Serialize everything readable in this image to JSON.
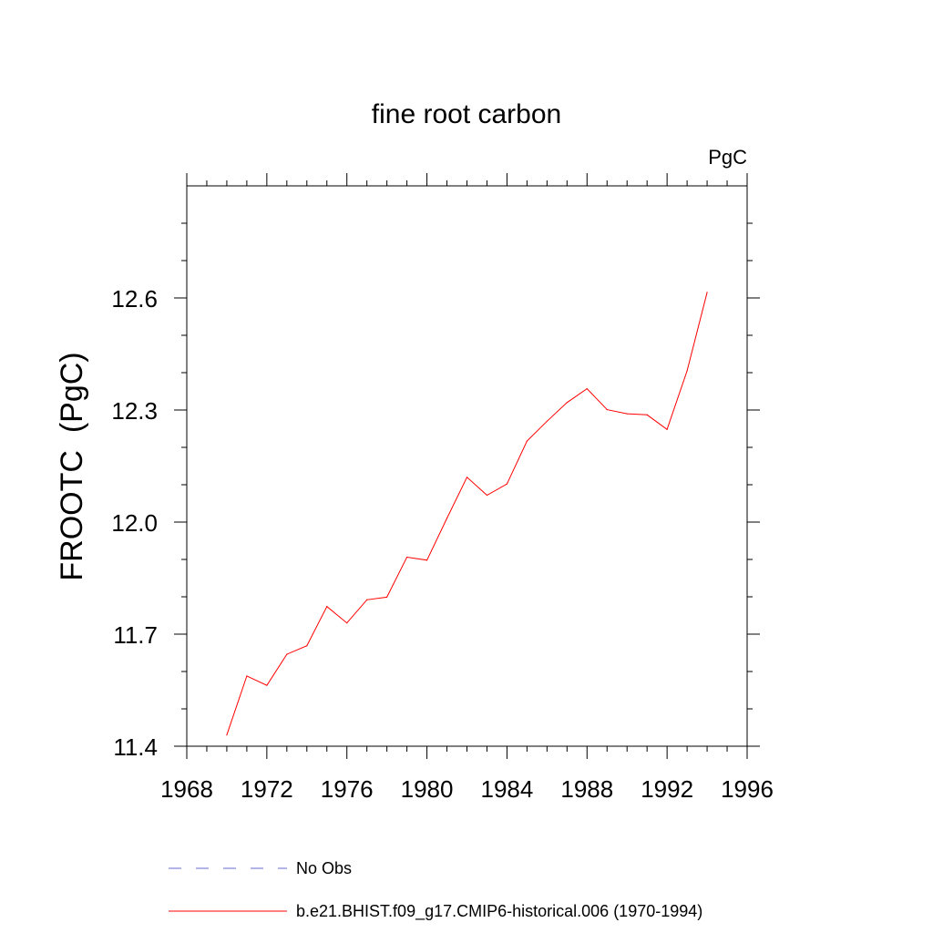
{
  "chart_data": {
    "type": "line",
    "title": "fine root carbon",
    "units_label": "PgC",
    "xlabel": "",
    "ylabel": "FROOTC  (PgC)",
    "xlim": [
      1968,
      1996
    ],
    "ylim": [
      11.4,
      12.9
    ],
    "x_ticks": [
      1968,
      1972,
      1976,
      1980,
      1984,
      1988,
      1992,
      1996
    ],
    "y_ticks": [
      11.4,
      11.7,
      12.0,
      12.3,
      12.6
    ],
    "x_tick_labels": [
      "1968",
      "1972",
      "1976",
      "1980",
      "1984",
      "1988",
      "1992",
      "1996"
    ],
    "y_tick_labels": [
      "11.4",
      "11.7",
      "12.0",
      "12.3",
      "12.6"
    ],
    "grid": false,
    "series": [
      {
        "name": "b.e21.BHIST.f09_g17.CMIP6-historical.006 (1970-1994)",
        "color": "#ff0000",
        "style": "solid",
        "x": [
          1970,
          1971,
          1972,
          1973,
          1974,
          1975,
          1976,
          1977,
          1978,
          1979,
          1980,
          1981,
          1982,
          1983,
          1984,
          1985,
          1986,
          1987,
          1988,
          1989,
          1990,
          1991,
          1992,
          1993,
          1994
        ],
        "values": [
          11.43,
          11.588,
          11.563,
          11.646,
          11.669,
          11.774,
          11.73,
          11.792,
          11.799,
          11.906,
          11.898,
          12.01,
          12.12,
          12.072,
          12.102,
          12.217,
          12.27,
          12.32,
          12.357,
          12.301,
          12.29,
          12.287,
          12.248,
          12.405,
          12.615
        ]
      }
    ],
    "legend": [
      {
        "label": "No Obs",
        "color": "#6a6ad0",
        "style": "dashed"
      },
      {
        "label": "b.e21.BHIST.f09_g17.CMIP6-historical.006 (1970-1994)",
        "color": "#ff0000",
        "style": "solid"
      }
    ]
  }
}
